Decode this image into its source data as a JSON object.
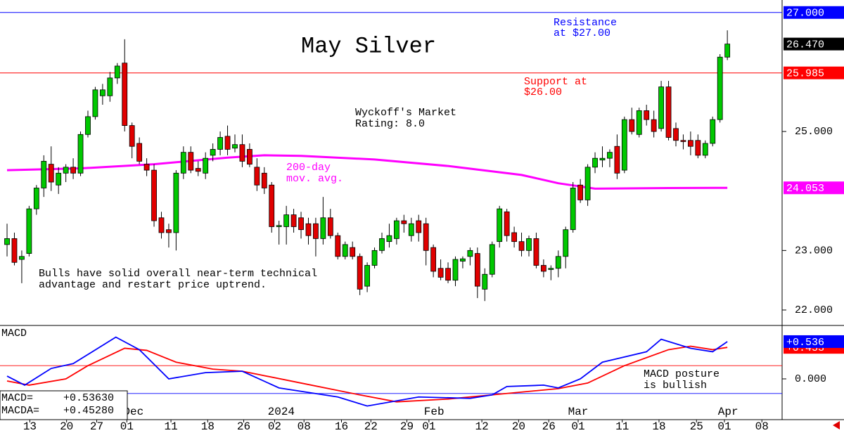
{
  "chart_data": [
    {
      "type": "candlestick",
      "title": "May Silver",
      "up_color": "#00c800",
      "down_color": "#e00000",
      "open": [
        23.1,
        23.2,
        22.85,
        22.95,
        23.7,
        24.05,
        24.45,
        24.1,
        24.3,
        24.4,
        24.3,
        24.95,
        25.25,
        25.6,
        25.6,
        25.9,
        26.15,
        25.1,
        24.8,
        24.45,
        24.35,
        23.55,
        23.35,
        23.3,
        24.3,
        24.65,
        24.38,
        24.3,
        24.6,
        24.7,
        24.92,
        24.72,
        24.78,
        24.7,
        24.4,
        24.3,
        24.1,
        23.4,
        23.4,
        23.6,
        23.55,
        23.45,
        23.45,
        23.2,
        23.55,
        23.25,
        22.9,
        23.05,
        22.9,
        22.4,
        22.75,
        23.0,
        23.15,
        23.2,
        23.5,
        23.25,
        23.5,
        23.45,
        23.05,
        22.7,
        22.7,
        22.5,
        22.82,
        22.9,
        22.95,
        22.35,
        22.6,
        23.15,
        23.65,
        23.3,
        23.15,
        23.0,
        23.2,
        22.75,
        22.68,
        22.7,
        22.9,
        23.35,
        24.1,
        23.85,
        24.4,
        24.52,
        24.55,
        24.75,
        24.35,
        25.2,
        24.95,
        25.35,
        25.2,
        25.05,
        25.75,
        25.05,
        24.85,
        24.85,
        24.85,
        24.6,
        24.8,
        25.2,
        26.25
      ],
      "high": [
        23.45,
        23.3,
        23.0,
        23.75,
        24.1,
        24.6,
        24.75,
        24.4,
        24.45,
        24.55,
        25.0,
        25.35,
        25.75,
        25.8,
        26.0,
        26.15,
        26.55,
        25.15,
        24.9,
        24.55,
        24.45,
        23.65,
        23.45,
        24.35,
        24.75,
        24.75,
        24.5,
        24.65,
        24.8,
        25.0,
        25.1,
        24.95,
        24.95,
        24.8,
        24.55,
        24.4,
        24.15,
        23.5,
        23.75,
        23.7,
        23.65,
        23.55,
        23.55,
        23.9,
        23.7,
        23.3,
        23.15,
        23.15,
        22.95,
        22.8,
        23.05,
        23.3,
        23.45,
        23.55,
        23.6,
        23.55,
        23.6,
        23.55,
        23.1,
        22.85,
        22.8,
        22.9,
        22.9,
        23.05,
        23.05,
        22.7,
        23.15,
        23.75,
        23.7,
        23.4,
        23.3,
        23.25,
        23.3,
        22.85,
        22.75,
        23.0,
        23.4,
        24.15,
        24.2,
        24.45,
        24.65,
        24.75,
        24.7,
        24.95,
        25.25,
        25.4,
        25.4,
        25.45,
        25.35,
        25.85,
        25.85,
        25.15,
        24.95,
        25.0,
        24.95,
        24.85,
        25.25,
        26.3,
        26.7
      ],
      "low": [
        22.9,
        22.75,
        22.45,
        22.9,
        23.6,
        23.9,
        24.0,
        23.95,
        24.15,
        24.2,
        24.25,
        24.9,
        25.2,
        25.45,
        25.5,
        25.8,
        25.0,
        24.55,
        24.45,
        24.25,
        23.4,
        23.2,
        23.05,
        23.0,
        24.2,
        24.3,
        24.25,
        24.2,
        24.5,
        24.6,
        24.6,
        24.65,
        24.4,
        24.4,
        24.0,
        23.95,
        23.3,
        23.1,
        23.1,
        23.3,
        23.2,
        23.1,
        22.9,
        23.1,
        23.2,
        22.85,
        22.85,
        22.85,
        22.25,
        22.3,
        22.7,
        22.95,
        23.05,
        23.1,
        23.3,
        23.15,
        23.15,
        22.75,
        22.55,
        22.5,
        22.45,
        22.4,
        22.7,
        22.75,
        22.2,
        22.15,
        22.55,
        23.05,
        23.15,
        23.05,
        22.9,
        22.9,
        22.7,
        22.55,
        22.5,
        22.55,
        22.7,
        23.3,
        23.8,
        23.75,
        24.3,
        24.4,
        24.4,
        24.2,
        24.3,
        24.95,
        24.9,
        25.1,
        24.9,
        25.0,
        24.85,
        24.75,
        24.7,
        24.6,
        24.55,
        24.55,
        24.75,
        25.15,
        26.2
      ],
      "close": [
        23.2,
        22.8,
        22.9,
        23.7,
        24.05,
        24.5,
        24.15,
        24.3,
        24.4,
        24.3,
        24.95,
        25.25,
        25.7,
        25.7,
        25.9,
        26.1,
        25.1,
        24.75,
        24.5,
        24.35,
        23.5,
        23.3,
        23.3,
        24.3,
        24.65,
        24.35,
        24.33,
        24.55,
        24.7,
        24.9,
        24.7,
        24.78,
        24.5,
        24.45,
        24.1,
        24.05,
        23.4,
        23.42,
        23.6,
        23.4,
        23.35,
        23.25,
        23.2,
        23.55,
        23.25,
        22.9,
        23.1,
        22.9,
        22.35,
        22.75,
        23.0,
        23.2,
        23.25,
        23.5,
        23.45,
        23.45,
        23.3,
        23.0,
        22.65,
        22.55,
        22.5,
        22.85,
        22.86,
        23.0,
        22.4,
        22.6,
        23.1,
        23.7,
        23.25,
        23.15,
        23.0,
        23.2,
        22.75,
        22.65,
        22.7,
        22.9,
        23.35,
        24.05,
        23.85,
        24.4,
        24.55,
        24.55,
        24.65,
        24.3,
        25.2,
        25.0,
        25.35,
        25.2,
        25.0,
        25.75,
        24.9,
        24.85,
        24.83,
        24.75,
        24.6,
        24.8,
        25.2,
        26.25,
        26.47
      ],
      "close_label": "26.470",
      "xlim": [
        -0.96,
        105.45
      ],
      "ylim": [
        21.74,
        27.21
      ],
      "yticks": [
        {
          "value": 22,
          "label": "22.000"
        },
        {
          "value": 23,
          "label": "23.000"
        },
        {
          "value": 25,
          "label": "25.000"
        }
      ],
      "price_lines": [
        {
          "value": 27,
          "label": "27.000",
          "color": "#0000ff",
          "note": [
            "Resistance",
            "at $27.00"
          ]
        },
        {
          "value": 25.985,
          "label": "25.985",
          "color": "#ff0000",
          "note": [
            "Support at",
            "$26.00"
          ]
        }
      ],
      "moving_average": {
        "label": [
          "200-day",
          "mov. avg."
        ],
        "color": "#ff00ff",
        "x": [
          0,
          10,
          20,
          30,
          35,
          40,
          50,
          60,
          70,
          75,
          80,
          90,
          98
        ],
        "values": [
          24.35,
          24.38,
          24.45,
          24.56,
          24.6,
          24.59,
          24.53,
          24.42,
          24.27,
          24.13,
          24.04,
          24.05,
          24.053
        ],
        "value_label": "24.053"
      },
      "annotations": [
        [
          "Wyckoff's Market",
          "Rating: 8.0"
        ],
        [
          "Bulls have solid overall near-term technical",
          "advantage and restart price uptrend."
        ]
      ]
    },
    {
      "type": "line",
      "title": "MACD",
      "xlim": [
        -0.96,
        105.45
      ],
      "ylim": [
        -0.586,
        0.768
      ],
      "yticks": [
        {
          "value": 0,
          "label": "0.000"
        }
      ],
      "reference_lines": [
        {
          "value": 0.19,
          "color": "#ff0000"
        },
        {
          "value": -0.21,
          "color": "#0000ff"
        }
      ],
      "series": [
        {
          "name": "MACDA=",
          "color": "#ff0000",
          "legend_value": "+0.45280",
          "value_label": "+0.453",
          "x": [
            0,
            3,
            8,
            11,
            16,
            19,
            23,
            28,
            32,
            40,
            48,
            53,
            60,
            68,
            75,
            79,
            84,
            90,
            93,
            96,
            98
          ],
          "values": [
            -0.03,
            -0.09,
            0.0,
            0.19,
            0.44,
            0.41,
            0.24,
            0.14,
            0.11,
            -0.06,
            -0.23,
            -0.33,
            -0.29,
            -0.21,
            -0.14,
            -0.06,
            0.19,
            0.42,
            0.47,
            0.42,
            0.4528
          ]
        },
        {
          "name": "MACD=",
          "color": "#0000ff",
          "legend_value": "+0.53630",
          "value_label": "+0.536",
          "x": [
            0,
            2.4,
            6,
            9,
            14.8,
            18,
            22,
            27,
            32,
            37,
            45,
            49,
            56,
            63,
            66,
            68,
            73,
            75,
            78,
            81,
            87,
            89,
            93,
            96,
            98
          ],
          "values": [
            0.04,
            -0.09,
            0.15,
            0.22,
            0.6,
            0.42,
            0.0,
            0.09,
            0.11,
            -0.13,
            -0.26,
            -0.39,
            -0.26,
            -0.28,
            -0.23,
            -0.11,
            -0.09,
            -0.13,
            0.0,
            0.24,
            0.39,
            0.57,
            0.44,
            0.39,
            0.536
          ]
        }
      ],
      "annotation": [
        "MACD posture",
        "is bullish"
      ],
      "xticks": [
        {
          "value": 3.1,
          "label": "13"
        },
        {
          "value": 8.1,
          "label": "20"
        },
        {
          "value": 12.2,
          "label": "27"
        },
        {
          "value": 16.3,
          "label": "01"
        },
        {
          "value": 22.3,
          "label": "11"
        },
        {
          "value": 27.3,
          "label": "18"
        },
        {
          "value": 32.2,
          "label": "26"
        },
        {
          "value": 36.4,
          "label": "02"
        },
        {
          "value": 40.4,
          "label": "08"
        },
        {
          "value": 45.5,
          "label": "16"
        },
        {
          "value": 49.5,
          "label": "22"
        },
        {
          "value": 54.4,
          "label": "29"
        },
        {
          "value": 57.4,
          "label": "01"
        },
        {
          "value": 64.6,
          "label": "12"
        },
        {
          "value": 69.6,
          "label": "20"
        },
        {
          "value": 73.7,
          "label": "26"
        },
        {
          "value": 77.7,
          "label": "01"
        },
        {
          "value": 83.7,
          "label": "11"
        },
        {
          "value": 88.7,
          "label": "18"
        },
        {
          "value": 93.8,
          "label": "25"
        },
        {
          "value": 97.6,
          "label": "01"
        },
        {
          "value": 102.7,
          "label": "08"
        }
      ],
      "month_labels": [
        {
          "value": 17.2,
          "label": "Dec"
        },
        {
          "value": 37.3,
          "label": "2024"
        },
        {
          "value": 58.1,
          "label": "Feb"
        },
        {
          "value": 77.7,
          "label": "Mar"
        },
        {
          "value": 98.1,
          "label": "Apr"
        }
      ]
    }
  ]
}
